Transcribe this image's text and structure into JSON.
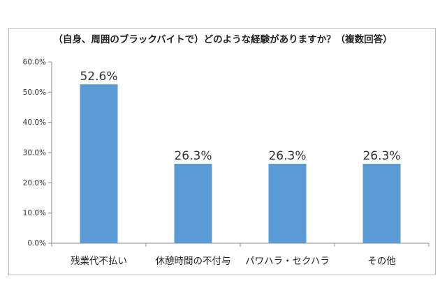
{
  "chart_data": {
    "type": "bar",
    "title": "（自身、周囲のブラックバイトで）どのような経験がありますか？（複数回答）",
    "categories": [
      "残業代不払い",
      "休憩時間の不付与",
      "パワハラ・セクハラ",
      "その他"
    ],
    "values": [
      52.6,
      26.3,
      26.3,
      26.3
    ],
    "data_labels": [
      "52.6%",
      "26.3%",
      "26.3%",
      "26.3%"
    ],
    "y_ticks": [
      "0.0%",
      "10.0%",
      "20.0%",
      "30.0%",
      "40.0%",
      "50.0%",
      "60.0%"
    ],
    "ylim": [
      0,
      60
    ],
    "bar_color": "#5b9bd5",
    "grid": false,
    "legend": "none",
    "xlabel": "",
    "ylabel": ""
  }
}
